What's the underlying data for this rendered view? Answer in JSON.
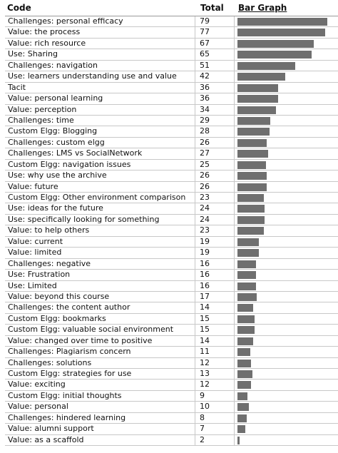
{
  "header": {
    "code_label": "Code",
    "total_label": "Total",
    "bar_label": "Bar Graph"
  },
  "bar_max": 79,
  "bar_color": "#6f6f6f",
  "rows": [
    {
      "code": "Challenges: personal efficacy",
      "total": 79
    },
    {
      "code": "Value: the process",
      "total": 77
    },
    {
      "code": "Value: rich resource",
      "total": 67
    },
    {
      "code": "Use: Sharing",
      "total": 65
    },
    {
      "code": "Challenges: navigation",
      "total": 51
    },
    {
      "code": "Use: learners understanding use and value",
      "total": 42
    },
    {
      "code": "Tacit",
      "total": 36
    },
    {
      "code": "Value: personal learning",
      "total": 36
    },
    {
      "code": "Value: perception",
      "total": 34
    },
    {
      "code": "Challenges: time",
      "total": 29
    },
    {
      "code": "Custom Elgg: Blogging",
      "total": 28
    },
    {
      "code": "Challenges: custom elgg",
      "total": 26
    },
    {
      "code": "Challenges: LMS vs SocialNetwork",
      "total": 27
    },
    {
      "code": "Custom Elgg: navigation issues",
      "total": 25
    },
    {
      "code": "Use: why use the archive",
      "total": 26
    },
    {
      "code": "Value: future",
      "total": 26
    },
    {
      "code": "Custom Elgg: Other environment comparison",
      "total": 23
    },
    {
      "code": "Use: ideas for the future",
      "total": 24
    },
    {
      "code": "Use: specifically looking for something",
      "total": 24
    },
    {
      "code": "Value: to help others",
      "total": 23
    },
    {
      "code": "Value: current",
      "total": 19
    },
    {
      "code": "Value: limited",
      "total": 19
    },
    {
      "code": "Challenges: negative",
      "total": 16
    },
    {
      "code": "Use: Frustration",
      "total": 16
    },
    {
      "code": "Use: Limited",
      "total": 16
    },
    {
      "code": "Value: beyond this course",
      "total": 17
    },
    {
      "code": "Challenges: the content author",
      "total": 14
    },
    {
      "code": "Custom Elgg: bookmarks",
      "total": 15
    },
    {
      "code": "Custom Elgg: valuable social environment",
      "total": 15
    },
    {
      "code": "Value: changed over time to positive",
      "total": 14
    },
    {
      "code": "Challenges: Plagiarism concern",
      "total": 11
    },
    {
      "code": "Challenges: solutions",
      "total": 12
    },
    {
      "code": "Custom Elgg: strategies for use",
      "total": 13
    },
    {
      "code": "Value: exciting",
      "total": 12
    },
    {
      "code": "Custom Elgg: initial thoughts",
      "total": 9
    },
    {
      "code": "Value: personal",
      "total": 10
    },
    {
      "code": "Challenges: hindered learning",
      "total": 8
    },
    {
      "code": "Value: alumni support",
      "total": 7
    },
    {
      "code": "Value: as a scaffold",
      "total": 2
    }
  ]
}
